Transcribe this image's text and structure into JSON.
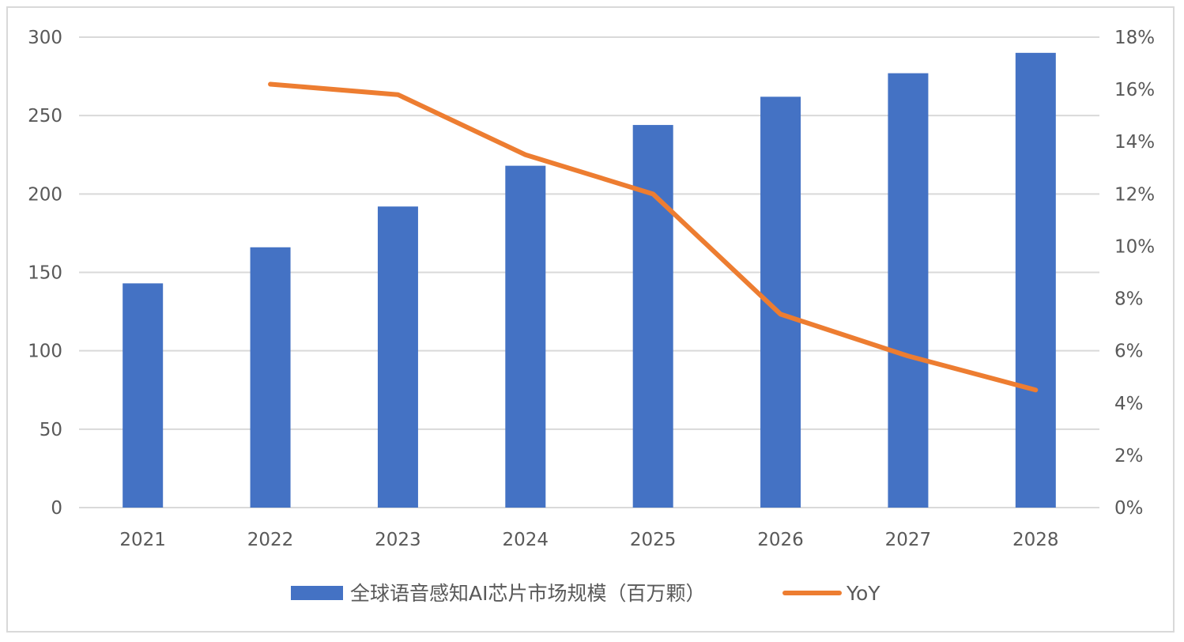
{
  "chart_data": {
    "type": "bar",
    "categories": [
      "2021",
      "2022",
      "2023",
      "2024",
      "2025",
      "2026",
      "2027",
      "2028"
    ],
    "series": [
      {
        "name": "全球语音感知AI芯片市场规模（百万颗）",
        "type": "bar",
        "axis": "left",
        "color": "#4472C4",
        "values": [
          143,
          166,
          192,
          218,
          244,
          262,
          277,
          290
        ]
      },
      {
        "name": "YoY",
        "type": "line",
        "axis": "right",
        "color": "#ED7D31",
        "values": [
          null,
          16.2,
          15.8,
          13.5,
          12.0,
          7.4,
          5.8,
          4.5
        ]
      }
    ],
    "y_left": {
      "ylim": [
        0,
        300
      ],
      "ticks": [
        0,
        50,
        100,
        150,
        200,
        250,
        300
      ],
      "tick_labels": [
        "0",
        "50",
        "100",
        "150",
        "200",
        "250",
        "300"
      ]
    },
    "y_right": {
      "ylim": [
        0,
        18
      ],
      "ticks": [
        0,
        2,
        4,
        6,
        8,
        10,
        12,
        14,
        16,
        18
      ],
      "tick_labels": [
        "0%",
        "2%",
        "4%",
        "6%",
        "8%",
        "10%",
        "12%",
        "14%",
        "16%",
        "18%"
      ]
    },
    "title": "",
    "xlabel": "",
    "ylabel": "",
    "grid": true,
    "legend_position": "bottom-center",
    "gridline_color": "#d9d9d9",
    "axis_text_color": "#595959"
  }
}
